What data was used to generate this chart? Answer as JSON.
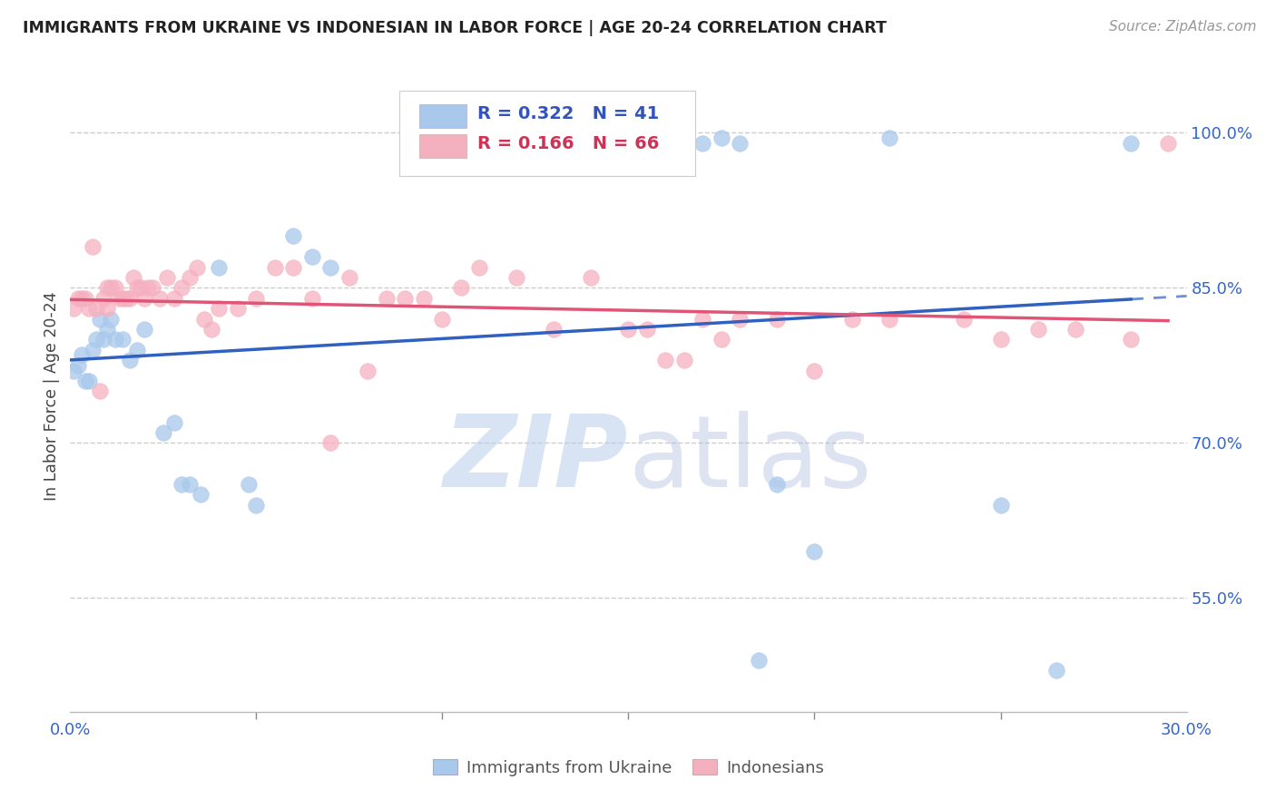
{
  "title": "IMMIGRANTS FROM UKRAINE VS INDONESIAN IN LABOR FORCE | AGE 20-24 CORRELATION CHART",
  "source": "Source: ZipAtlas.com",
  "ylabel": "In Labor Force | Age 20-24",
  "ukraine_R": "0.322",
  "ukraine_N": "41",
  "indonesian_R": "0.166",
  "indonesian_N": "66",
  "ukraine_color": "#a8c8ec",
  "indonesian_color": "#f5b0c0",
  "ukraine_line_color": "#3060c0",
  "indonesian_line_color": "#e05575",
  "xlim": [
    0.0,
    0.3
  ],
  "ylim": [
    0.44,
    1.05
  ],
  "ukraine_x": [
    0.001,
    0.002,
    0.003,
    0.004,
    0.005,
    0.006,
    0.007,
    0.008,
    0.009,
    0.01,
    0.011,
    0.012,
    0.014,
    0.016,
    0.018,
    0.02,
    0.025,
    0.028,
    0.03,
    0.032,
    0.035,
    0.04,
    0.048,
    0.05,
    0.06,
    0.065,
    0.07,
    0.15,
    0.155,
    0.16,
    0.165,
    0.17,
    0.175,
    0.18,
    0.185,
    0.19,
    0.2,
    0.22,
    0.25,
    0.265,
    0.285
  ],
  "ukraine_y": [
    0.77,
    0.775,
    0.785,
    0.76,
    0.76,
    0.79,
    0.8,
    0.82,
    0.8,
    0.81,
    0.82,
    0.8,
    0.8,
    0.78,
    0.79,
    0.81,
    0.71,
    0.72,
    0.66,
    0.66,
    0.65,
    0.87,
    0.66,
    0.64,
    0.9,
    0.88,
    0.87,
    0.99,
    0.995,
    0.995,
    0.99,
    0.99,
    0.995,
    0.99,
    0.49,
    0.66,
    0.595,
    0.995,
    0.64,
    0.48,
    0.99
  ],
  "indonesian_x": [
    0.001,
    0.002,
    0.003,
    0.004,
    0.005,
    0.006,
    0.007,
    0.008,
    0.009,
    0.01,
    0.01,
    0.011,
    0.012,
    0.013,
    0.014,
    0.015,
    0.016,
    0.017,
    0.018,
    0.019,
    0.02,
    0.021,
    0.022,
    0.024,
    0.026,
    0.028,
    0.03,
    0.032,
    0.034,
    0.036,
    0.038,
    0.04,
    0.045,
    0.05,
    0.055,
    0.06,
    0.065,
    0.07,
    0.075,
    0.08,
    0.085,
    0.09,
    0.095,
    0.1,
    0.105,
    0.11,
    0.12,
    0.13,
    0.14,
    0.15,
    0.155,
    0.16,
    0.165,
    0.17,
    0.175,
    0.18,
    0.19,
    0.2,
    0.21,
    0.22,
    0.24,
    0.25,
    0.26,
    0.27,
    0.285,
    0.295
  ],
  "indonesian_y": [
    0.83,
    0.84,
    0.84,
    0.84,
    0.83,
    0.89,
    0.83,
    0.75,
    0.84,
    0.85,
    0.83,
    0.85,
    0.85,
    0.84,
    0.84,
    0.84,
    0.84,
    0.86,
    0.85,
    0.85,
    0.84,
    0.85,
    0.85,
    0.84,
    0.86,
    0.84,
    0.85,
    0.86,
    0.87,
    0.82,
    0.81,
    0.83,
    0.83,
    0.84,
    0.87,
    0.87,
    0.84,
    0.7,
    0.86,
    0.77,
    0.84,
    0.84,
    0.84,
    0.82,
    0.85,
    0.87,
    0.86,
    0.81,
    0.86,
    0.81,
    0.81,
    0.78,
    0.78,
    0.82,
    0.8,
    0.82,
    0.82,
    0.77,
    0.82,
    0.82,
    0.82,
    0.8,
    0.81,
    0.81,
    0.8,
    0.99
  ],
  "background_color": "#ffffff",
  "grid_color": "#cccccc",
  "ytick_positions": [
    1.0,
    0.85,
    0.7,
    0.55
  ],
  "ytick_labels": [
    "100.0%",
    "85.0%",
    "70.0%",
    "55.0%"
  ],
  "xtick_positions": [
    0.0,
    0.3
  ],
  "xtick_labels": [
    "0.0%",
    "30.0%"
  ],
  "xtick_minor": [
    0.05,
    0.1,
    0.15,
    0.2,
    0.25
  ],
  "watermark_text1": "ZIP",
  "watermark_text2": "atlas"
}
